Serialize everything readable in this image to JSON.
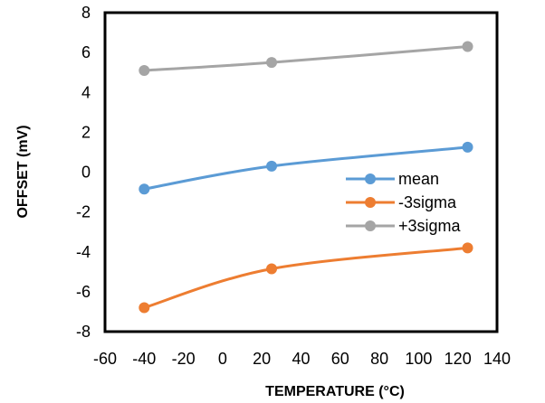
{
  "chart_data": {
    "type": "line",
    "xlabel": "TEMPERATURE  (°C)",
    "ylabel": "OFFSET  (mV)",
    "xlim": [
      -60,
      140
    ],
    "ylim": [
      -8,
      8
    ],
    "xticks": [
      -60,
      -40,
      -20,
      0,
      20,
      40,
      60,
      80,
      100,
      120,
      140
    ],
    "yticks": [
      -8,
      -6,
      -4,
      -2,
      0,
      2,
      4,
      6,
      8
    ],
    "grid": false,
    "legend_position": "lower-right",
    "series": [
      {
        "name": "mean",
        "color": "#5B9BD5",
        "x": [
          -40,
          25,
          125
        ],
        "y": [
          -0.85,
          0.3,
          1.25
        ]
      },
      {
        "name": "-3sigma",
        "color": "#ED7D31",
        "x": [
          -40,
          25,
          125
        ],
        "y": [
          -6.8,
          -4.85,
          -3.8
        ]
      },
      {
        "name": "+3sigma",
        "color": "#A5A5A5",
        "x": [
          -40,
          25,
          125
        ],
        "y": [
          5.1,
          5.5,
          6.3
        ]
      }
    ]
  }
}
